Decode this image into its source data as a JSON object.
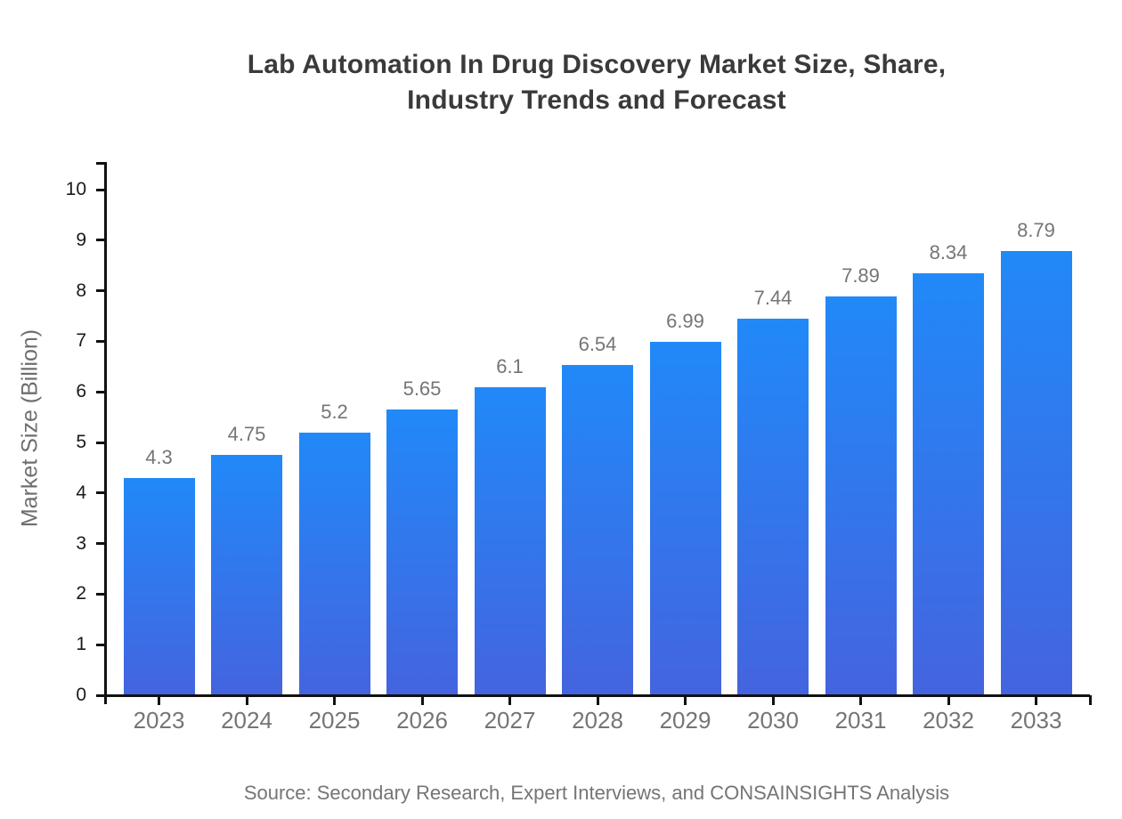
{
  "chart": {
    "title_line1": "Lab Automation In Drug Discovery Market Size, Share,",
    "title_line2": "Industry Trends and Forecast",
    "ylabel": "Market Size (Billion)",
    "source": "Source: Secondary Research, Expert Interviews, and CONSAINSIGHTS Analysis"
  },
  "chart_data": {
    "type": "bar",
    "title": "Lab Automation In Drug Discovery Market Size, Share, Industry Trends and Forecast",
    "categories": [
      "2023",
      "2024",
      "2025",
      "2026",
      "2027",
      "2028",
      "2029",
      "2030",
      "2031",
      "2032",
      "2033"
    ],
    "values": [
      4.3,
      4.75,
      5.2,
      5.65,
      6.1,
      6.54,
      6.99,
      7.44,
      7.89,
      8.34,
      8.79
    ],
    "data_labels": [
      "4.3",
      "4.75",
      "5.2",
      "5.65",
      "6.1",
      "6.54",
      "6.99",
      "7.44",
      "7.89",
      "8.34",
      "8.79"
    ],
    "xlabel": "",
    "ylabel": "Market Size (Billion)",
    "ylim": [
      0,
      10
    ],
    "yticks": [
      0,
      1,
      2,
      3,
      4,
      5,
      6,
      7,
      8,
      9,
      10
    ],
    "grid": false,
    "legend": "none",
    "colors": {
      "bar_gradient_top": "#2189F8",
      "bar_gradient_bottom": "#4464DF",
      "axis": "#111111",
      "title": "#3A3A3A",
      "tick_label": "#1A1A1A",
      "category_label": "#757575",
      "value_label": "#757575",
      "source_text": "#757575",
      "background": "#FFFFFF"
    },
    "source": "Source: Secondary Research, Expert Interviews, and CONSAINSIGHTS Analysis"
  }
}
